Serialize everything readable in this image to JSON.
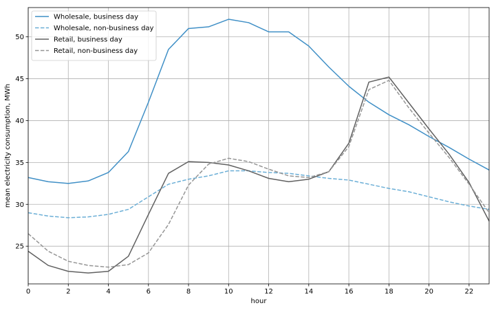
{
  "chart_data": {
    "type": "line",
    "title": "",
    "xlabel": "hour",
    "ylabel": "mean electricity consumption, MWh",
    "xlim": [
      0,
      23
    ],
    "ylim": [
      20.5,
      53.5
    ],
    "xticks": [
      0,
      2,
      4,
      6,
      8,
      10,
      12,
      14,
      16,
      18,
      20,
      22
    ],
    "yticks": [
      25,
      30,
      35,
      40,
      45,
      50
    ],
    "grid": true,
    "legend_position": "top-left",
    "x": [
      0,
      1,
      2,
      3,
      4,
      5,
      6,
      7,
      8,
      9,
      10,
      11,
      12,
      13,
      14,
      15,
      16,
      17,
      18,
      19,
      20,
      21,
      22,
      23
    ],
    "series": [
      {
        "name": "Wholesale, business day",
        "color": "#3f8fc6",
        "dash": "solid",
        "values": [
          33.2,
          32.7,
          32.5,
          32.8,
          33.8,
          36.3,
          42.2,
          48.5,
          51.0,
          51.2,
          52.1,
          51.7,
          50.6,
          50.6,
          48.9,
          46.4,
          44.1,
          42.2,
          40.7,
          39.5,
          38.1,
          36.8,
          35.4,
          34.1
        ]
      },
      {
        "name": "Wholesale, non-business day",
        "color": "#6aaed6",
        "dash": "dashed",
        "values": [
          29.0,
          28.6,
          28.4,
          28.5,
          28.8,
          29.4,
          30.9,
          32.4,
          33.0,
          33.4,
          34.0,
          34.0,
          33.8,
          33.7,
          33.4,
          33.1,
          32.9,
          32.4,
          31.9,
          31.5,
          30.9,
          30.3,
          29.8,
          29.4
        ]
      },
      {
        "name": "Retail, business day",
        "color": "#606060",
        "dash": "solid",
        "values": [
          24.4,
          22.7,
          22.0,
          21.8,
          22.0,
          23.8,
          28.8,
          33.7,
          35.1,
          35.0,
          34.7,
          34.0,
          33.1,
          32.7,
          33.0,
          33.9,
          37.3,
          44.6,
          45.2,
          42.1,
          39.0,
          36.0,
          32.6,
          28.0
        ]
      },
      {
        "name": "Retail, non-business day",
        "color": "#959595",
        "dash": "dashed",
        "values": [
          26.5,
          24.4,
          23.2,
          22.7,
          22.5,
          22.8,
          24.2,
          27.6,
          32.3,
          34.8,
          35.5,
          35.1,
          34.2,
          33.4,
          33.2,
          33.9,
          36.9,
          43.7,
          44.8,
          41.5,
          38.5,
          35.6,
          32.4,
          29.0
        ]
      }
    ]
  }
}
